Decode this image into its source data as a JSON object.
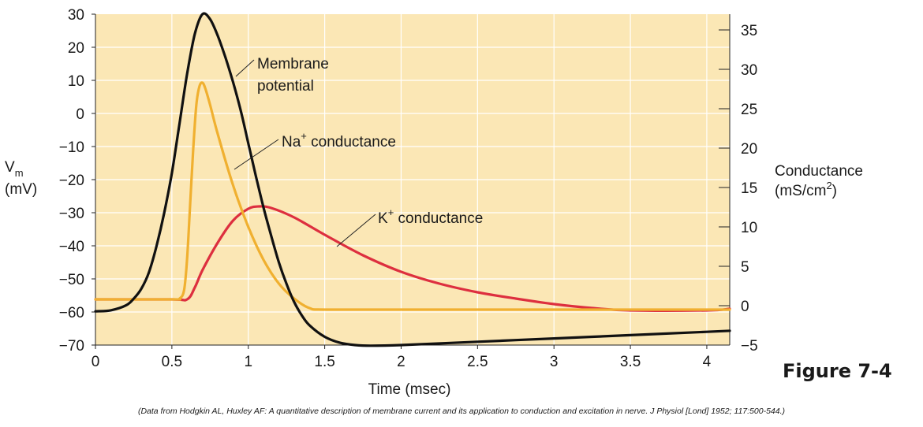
{
  "chart_data": {
    "type": "line",
    "x_axis": {
      "label": "Time (msec)",
      "range": [
        0,
        4.15
      ],
      "ticks": [
        "0",
        "0.5",
        "1",
        "1.5",
        "2",
        "2.5",
        "3",
        "3.5",
        "4"
      ]
    },
    "y_left": {
      "label_main": "V",
      "label_sub": "m",
      "units": "(mV)",
      "range": [
        -70,
        30
      ],
      "ticks": [
        "30",
        "20",
        "10",
        "0",
        "−10",
        "−20",
        "−30",
        "−40",
        "−50",
        "−60",
        "−70"
      ]
    },
    "y_right": {
      "label": "Conductance",
      "units_base": "(mS/cm",
      "units_sup": "2",
      "units_close": ")",
      "range": [
        -5,
        37
      ],
      "ticks": [
        "35",
        "30",
        "25",
        "20",
        "15",
        "10",
        "5",
        "0",
        "−5"
      ]
    },
    "series": [
      {
        "name": "Membrane potential",
        "axis": "left",
        "color": "#111111",
        "points": [
          [
            0,
            -59.8
          ],
          [
            0.1,
            -59.5
          ],
          [
            0.2,
            -58
          ],
          [
            0.25,
            -56
          ],
          [
            0.3,
            -53
          ],
          [
            0.35,
            -48
          ],
          [
            0.4,
            -40
          ],
          [
            0.45,
            -30
          ],
          [
            0.5,
            -18
          ],
          [
            0.55,
            -3
          ],
          [
            0.6,
            12
          ],
          [
            0.65,
            24
          ],
          [
            0.7,
            30
          ],
          [
            0.75,
            28.5
          ],
          [
            0.8,
            23.5
          ],
          [
            0.85,
            17
          ],
          [
            0.9,
            9.5
          ],
          [
            0.95,
            1
          ],
          [
            1.0,
            -9
          ],
          [
            1.05,
            -19
          ],
          [
            1.1,
            -28.5
          ],
          [
            1.15,
            -37
          ],
          [
            1.2,
            -45
          ],
          [
            1.25,
            -51.5
          ],
          [
            1.3,
            -57
          ],
          [
            1.35,
            -61
          ],
          [
            1.4,
            -64
          ],
          [
            1.5,
            -67.5
          ],
          [
            1.6,
            -69.3
          ],
          [
            1.7,
            -70
          ],
          [
            1.8,
            -70.2
          ],
          [
            2.0,
            -70
          ],
          [
            2.5,
            -69
          ],
          [
            3.0,
            -68
          ],
          [
            3.5,
            -67
          ],
          [
            4.0,
            -66
          ],
          [
            4.15,
            -65.7
          ]
        ]
      },
      {
        "name": "Na⁺ conductance",
        "axis": "right",
        "color": "#f0b030",
        "points": [
          [
            0,
            0.8
          ],
          [
            0.5,
            0.8
          ],
          [
            0.55,
            0.9
          ],
          [
            0.58,
            2
          ],
          [
            0.6,
            6
          ],
          [
            0.62,
            13
          ],
          [
            0.64,
            20
          ],
          [
            0.66,
            25.5
          ],
          [
            0.68,
            27.8
          ],
          [
            0.7,
            28.3
          ],
          [
            0.72,
            27.5
          ],
          [
            0.75,
            25.5
          ],
          [
            0.8,
            21.8
          ],
          [
            0.9,
            15.3
          ],
          [
            1.0,
            10
          ],
          [
            1.1,
            5.8
          ],
          [
            1.2,
            2.8
          ],
          [
            1.3,
            0.9
          ],
          [
            1.4,
            -0.3
          ],
          [
            1.5,
            -0.5
          ],
          [
            2.0,
            -0.5
          ],
          [
            3.0,
            -0.5
          ],
          [
            4.15,
            -0.5
          ]
        ]
      },
      {
        "name": "K⁺ conductance",
        "axis": "right",
        "color": "#dd2f3f",
        "points": [
          [
            0,
            0.8
          ],
          [
            0.5,
            0.8
          ],
          [
            0.6,
            0.8
          ],
          [
            0.65,
            2.3
          ],
          [
            0.7,
            4.5
          ],
          [
            0.8,
            8
          ],
          [
            0.9,
            10.8
          ],
          [
            1.0,
            12.3
          ],
          [
            1.07,
            12.6
          ],
          [
            1.15,
            12.4
          ],
          [
            1.3,
            11.2
          ],
          [
            1.5,
            9.0
          ],
          [
            1.75,
            6.4
          ],
          [
            2.0,
            4.3
          ],
          [
            2.25,
            2.8
          ],
          [
            2.5,
            1.7
          ],
          [
            2.75,
            0.9
          ],
          [
            3.0,
            0.2
          ],
          [
            3.25,
            -0.3
          ],
          [
            3.5,
            -0.6
          ],
          [
            4.0,
            -0.6
          ],
          [
            4.15,
            -0.4
          ]
        ]
      }
    ],
    "annotations": {
      "membrane_line1": "Membrane",
      "membrane_line2": "potential",
      "na_base": "Na",
      "na_sup": "+",
      "na_rest": " conductance",
      "k_base": "K",
      "k_sup": "+",
      "k_rest": " conductance"
    },
    "grid": true,
    "background": "#fbe7b5",
    "grid_color": "#ffffff"
  },
  "figure_label": "Figure 7-4",
  "credit": "(Data from Hodgkin AL, Huxley AF: A quantitative description of membrane current and its application to conduction and excitation in nerve. J Physiol [Lond] 1952; 117:500-544.)"
}
